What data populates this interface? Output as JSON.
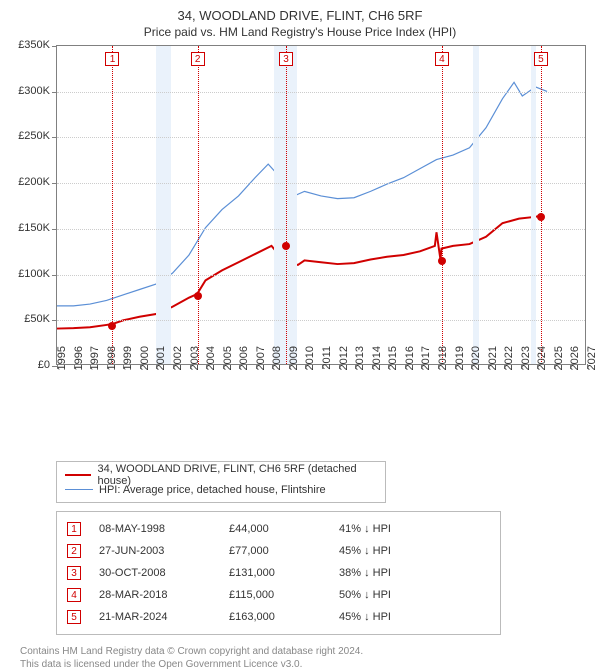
{
  "title": {
    "line1": "34, WOODLAND DRIVE, FLINT, CH6 5RF",
    "line2": "Price paid vs. HM Land Registry's House Price Index (HPI)",
    "fontsize_main": 13,
    "fontsize_sub": 12
  },
  "chart": {
    "type": "line",
    "background_color": "#ffffff",
    "border_color": "#808080",
    "grid_color": "#cccccc",
    "x": {
      "min": 1995,
      "max": 2027,
      "ticks": [
        1995,
        1996,
        1997,
        1998,
        1999,
        2000,
        2001,
        2002,
        2003,
        2004,
        2005,
        2006,
        2007,
        2008,
        2009,
        2010,
        2011,
        2012,
        2013,
        2014,
        2015,
        2016,
        2017,
        2018,
        2019,
        2020,
        2021,
        2022,
        2023,
        2024,
        2025,
        2026,
        2027
      ]
    },
    "y": {
      "min": 0,
      "max": 350000,
      "ticks": [
        0,
        50000,
        100000,
        150000,
        200000,
        250000,
        300000,
        350000
      ],
      "tick_labels": [
        "£0",
        "£50K",
        "£100K",
        "£150K",
        "£200K",
        "£250K",
        "£300K",
        "£350K"
      ]
    },
    "vbands": [
      {
        "from": 2001.0,
        "to": 2001.9,
        "color": "#eaf2fb"
      },
      {
        "from": 2008.1,
        "to": 2009.5,
        "color": "#eaf2fb"
      },
      {
        "from": 2020.1,
        "to": 2020.5,
        "color": "#eaf2fb"
      },
      {
        "from": 2023.6,
        "to": 2023.9,
        "color": "#eaf2fb"
      }
    ],
    "sale_markers": [
      {
        "n": "1",
        "x": 1998.35,
        "color": "#d00000"
      },
      {
        "n": "2",
        "x": 2003.49,
        "color": "#d00000"
      },
      {
        "n": "3",
        "x": 2008.83,
        "color": "#d00000"
      },
      {
        "n": "4",
        "x": 2018.24,
        "color": "#d00000"
      },
      {
        "n": "5",
        "x": 2024.22,
        "color": "#d00000"
      }
    ],
    "series": [
      {
        "name": "price_paid",
        "label": "34, WOODLAND DRIVE, FLINT, CH6 5RF (detached house)",
        "color": "#d00000",
        "width": 2,
        "data": [
          [
            1995.0,
            39000
          ],
          [
            1996.0,
            39500
          ],
          [
            1997.0,
            40500
          ],
          [
            1998.0,
            43000
          ],
          [
            1998.35,
            44000
          ],
          [
            1999.0,
            48000
          ],
          [
            2000.0,
            52000
          ],
          [
            2001.0,
            55000
          ],
          [
            2002.0,
            63000
          ],
          [
            2003.0,
            73000
          ],
          [
            2003.49,
            77000
          ],
          [
            2004.0,
            92000
          ],
          [
            2005.0,
            103000
          ],
          [
            2006.0,
            112000
          ],
          [
            2007.0,
            121000
          ],
          [
            2008.0,
            130000
          ],
          [
            2008.6,
            117000
          ],
          [
            2008.83,
            131000
          ],
          [
            2009.0,
            112000
          ],
          [
            2009.6,
            109000
          ],
          [
            2010.0,
            114000
          ],
          [
            2011.0,
            112000
          ],
          [
            2012.0,
            110000
          ],
          [
            2013.0,
            111000
          ],
          [
            2014.0,
            115000
          ],
          [
            2015.0,
            118000
          ],
          [
            2016.0,
            120000
          ],
          [
            2017.0,
            124000
          ],
          [
            2017.9,
            130000
          ],
          [
            2018.0,
            145000
          ],
          [
            2018.24,
            115000
          ],
          [
            2018.3,
            127000
          ],
          [
            2019.0,
            130000
          ],
          [
            2020.0,
            132000
          ],
          [
            2021.0,
            140000
          ],
          [
            2022.0,
            155000
          ],
          [
            2023.0,
            160000
          ],
          [
            2024.0,
            162000
          ],
          [
            2024.22,
            163000
          ]
        ],
        "points": [
          {
            "x": 1998.35,
            "y": 44000
          },
          {
            "x": 2003.49,
            "y": 77000
          },
          {
            "x": 2008.83,
            "y": 131000
          },
          {
            "x": 2018.24,
            "y": 115000
          },
          {
            "x": 2024.22,
            "y": 163000
          }
        ]
      },
      {
        "name": "hpi",
        "label": "HPI: Average price, detached house, Flintshire",
        "color": "#5b8fd6",
        "width": 1.2,
        "data": [
          [
            1995.0,
            64000
          ],
          [
            1996.0,
            64000
          ],
          [
            1997.0,
            66000
          ],
          [
            1998.0,
            70000
          ],
          [
            1999.0,
            76000
          ],
          [
            2000.0,
            82000
          ],
          [
            2001.0,
            88000
          ],
          [
            2002.0,
            100000
          ],
          [
            2003.0,
            120000
          ],
          [
            2004.0,
            150000
          ],
          [
            2005.0,
            170000
          ],
          [
            2006.0,
            185000
          ],
          [
            2007.0,
            205000
          ],
          [
            2007.8,
            220000
          ],
          [
            2008.3,
            210000
          ],
          [
            2009.0,
            182000
          ],
          [
            2010.0,
            190000
          ],
          [
            2011.0,
            185000
          ],
          [
            2012.0,
            182000
          ],
          [
            2013.0,
            183000
          ],
          [
            2014.0,
            190000
          ],
          [
            2015.0,
            198000
          ],
          [
            2016.0,
            205000
          ],
          [
            2017.0,
            215000
          ],
          [
            2018.0,
            225000
          ],
          [
            2019.0,
            230000
          ],
          [
            2020.0,
            238000
          ],
          [
            2021.0,
            260000
          ],
          [
            2022.0,
            292000
          ],
          [
            2022.7,
            310000
          ],
          [
            2023.2,
            295000
          ],
          [
            2024.0,
            305000
          ],
          [
            2024.7,
            300000
          ]
        ],
        "points": []
      }
    ]
  },
  "legend": {
    "border_color": "#bbbbbb"
  },
  "sales_table": {
    "border_color": "#bbbbbb",
    "rows": [
      {
        "n": "1",
        "date": "08-MAY-1998",
        "price": "£44,000",
        "delta": "41% ↓ HPI",
        "color": "#d00000"
      },
      {
        "n": "2",
        "date": "27-JUN-2003",
        "price": "£77,000",
        "delta": "45% ↓ HPI",
        "color": "#d00000"
      },
      {
        "n": "3",
        "date": "30-OCT-2008",
        "price": "£131,000",
        "delta": "38% ↓ HPI",
        "color": "#d00000"
      },
      {
        "n": "4",
        "date": "28-MAR-2018",
        "price": "£115,000",
        "delta": "50% ↓ HPI",
        "color": "#d00000"
      },
      {
        "n": "5",
        "date": "21-MAR-2024",
        "price": "£163,000",
        "delta": "45% ↓ HPI",
        "color": "#d00000"
      }
    ]
  },
  "footer": {
    "line1": "Contains HM Land Registry data © Crown copyright and database right 2024.",
    "line2": "This data is licensed under the Open Government Licence v3.0."
  }
}
